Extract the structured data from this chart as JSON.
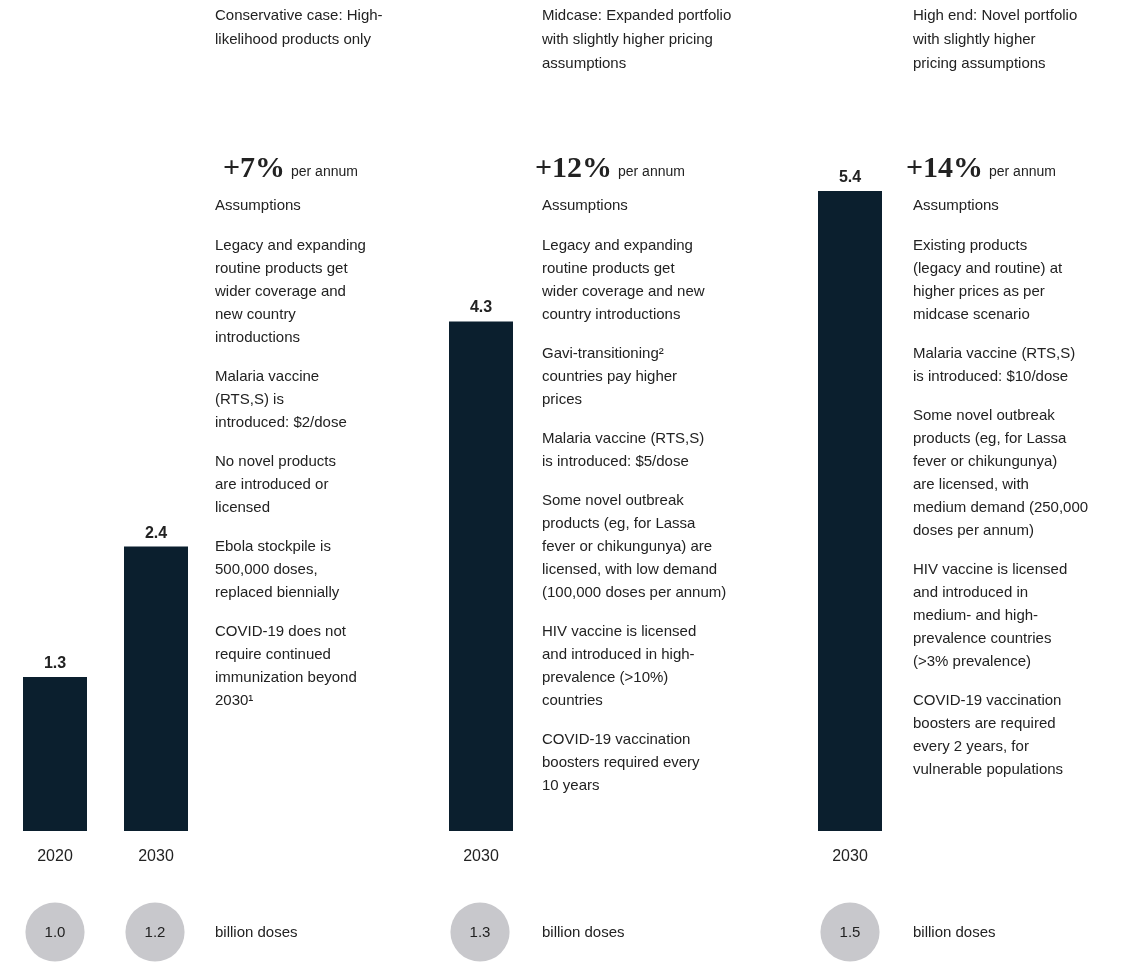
{
  "chart_data": {
    "type": "bar",
    "categories": [
      "2020",
      "2030",
      "2030",
      "2030"
    ],
    "values": [
      1.3,
      2.4,
      4.3,
      5.4
    ],
    "color": "#0b1f2e",
    "data_labels": true,
    "annotations": [
      "1.0",
      "Conservative case: High-likelihood products only",
      "+7% per annum",
      "Assumptions",
      "Legacy and expanding routine products get wider coverage and new country introductions",
      "Malaria vaccine (RTS,S) is introduced: $2/dose",
      "No novel products are introduced or licensed",
      "Ebola stockpile is 500,000 doses, replaced biennially",
      "COVID-19 does not require continued immunization beyond 2030¹",
      "1.2",
      "billion doses",
      "Midcase: Expanded portfolio with slightly higher pricing assumptions",
      "+12% per annum",
      "Assumptions",
      "Legacy and expanding routine products get wider coverage and new country introductions",
      "Gavi-transitioning² countries pay higher prices",
      "Malaria vaccine (RTS,S) is introduced: $5/dose",
      "Some novel outbreak products (eg, for Lassa fever or chikungunya) are licensed, with low demand (100,000 doses per annum)",
      "HIV vaccine is licensed and introduced in high-prevalence (>10%) countries",
      "COVID-19 vaccination boosters required every 10 years",
      "1.3",
      "billion doses",
      "High end: Novel portfolio with slightly higher pricing assumptions",
      "+14% per annum",
      "Assumptions",
      "Existing products (legacy and routine) at higher prices as per midcase scenario",
      "Malaria vaccine (RTS,S) is introduced: $10/dose",
      "Some novel outbreak products (eg, for Lassa fever or chikungunya) are licensed, with medium demand (250,000 doses per annum)",
      "HIV vaccine is licensed and introduced in medium- and high-prevalence countries (>3% prevalence)",
      "COVID-19 vaccination boosters are required every 2 years, for vulnerable populations",
      "1.5",
      "billion doses"
    ]
  }
}
